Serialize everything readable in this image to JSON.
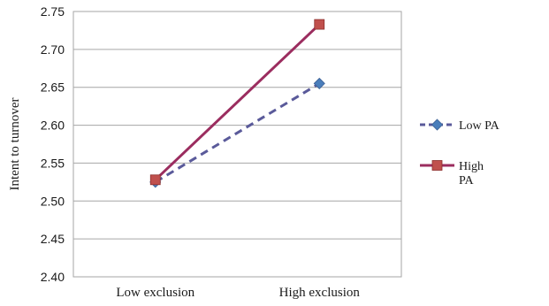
{
  "chart_data": {
    "type": "line",
    "title": "",
    "xlabel": "",
    "ylabel": "Intent to turnover",
    "categories": [
      "Low exclusion",
      "High exclusion"
    ],
    "ylim": [
      2.4,
      2.75
    ],
    "yticks": [
      "2.40",
      "2.45",
      "2.50",
      "2.55",
      "2.60",
      "2.65",
      "2.70",
      "2.75"
    ],
    "grid": "horizontal",
    "legend_position": "right",
    "series": [
      {
        "name": "Low PA",
        "values": [
          2.525,
          2.655
        ],
        "color": "#5a5a9a",
        "marker": "diamond",
        "marker_color": "#4a7ebb",
        "line": "dashed"
      },
      {
        "name": "High PA",
        "values": [
          2.528,
          2.733
        ],
        "color": "#9b2d5f",
        "marker": "square",
        "marker_color": "#c0504d",
        "line": "solid"
      }
    ],
    "legend_labels": [
      [
        "Low PA"
      ],
      [
        "High",
        "PA"
      ]
    ]
  }
}
